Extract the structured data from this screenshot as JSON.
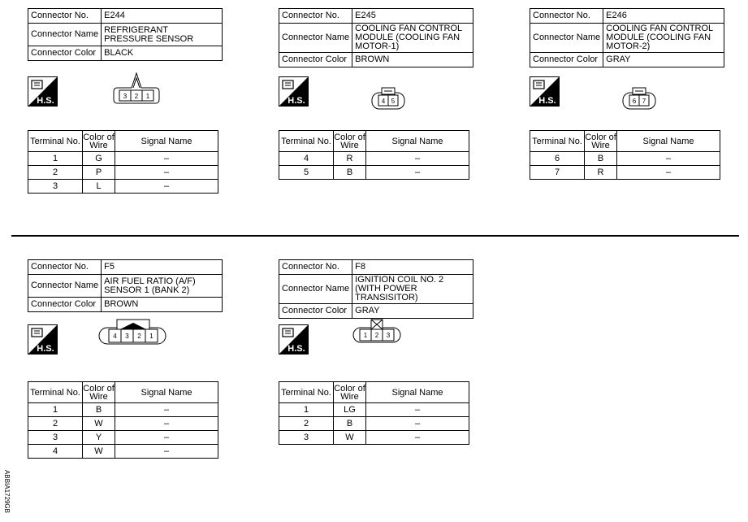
{
  "labels": {
    "connector_no": "Connector No.",
    "connector_name": "Connector Name",
    "connector_color": "Connector Color",
    "terminal_no": "Terminal No.",
    "color_of_wire": "Color of Wire",
    "signal_name": "Signal Name",
    "hs": "H.S."
  },
  "connectors": [
    {
      "no": "E244",
      "name": "REFRIGERANT PRESSURE SENSOR",
      "color": "BLACK",
      "shape": "3-pin-triangle",
      "pins": [
        "3",
        "2",
        "1"
      ],
      "terminals": [
        {
          "t": "1",
          "w": "G",
          "s": "–"
        },
        {
          "t": "2",
          "w": "P",
          "s": "–"
        },
        {
          "t": "3",
          "w": "L",
          "s": "–"
        }
      ]
    },
    {
      "no": "E245",
      "name": "COOLING FAN CONTROL MODULE (COOLING FAN MOTOR-1)",
      "color": "BROWN",
      "shape": "2-pin",
      "pins": [
        "4",
        "5"
      ],
      "terminals": [
        {
          "t": "4",
          "w": "R",
          "s": "–"
        },
        {
          "t": "5",
          "w": "B",
          "s": "–"
        }
      ]
    },
    {
      "no": "E246",
      "name": "COOLING FAN CONTROL MODULE (COOLING FAN MOTOR-2)",
      "color": "GRAY",
      "shape": "2-pin",
      "pins": [
        "6",
        "7"
      ],
      "terminals": [
        {
          "t": "6",
          "w": "B",
          "s": "–"
        },
        {
          "t": "7",
          "w": "R",
          "s": "–"
        }
      ]
    },
    {
      "no": "F5",
      "name": "AIR FUEL RATIO (A/F) SENSOR 1 (BANK 2)",
      "color": "BROWN",
      "shape": "4-pin-filled",
      "pins": [
        "4",
        "3",
        "2",
        "1"
      ],
      "terminals": [
        {
          "t": "1",
          "w": "B",
          "s": "–"
        },
        {
          "t": "2",
          "w": "W",
          "s": "–"
        },
        {
          "t": "3",
          "w": "Y",
          "s": "–"
        },
        {
          "t": "4",
          "w": "W",
          "s": "–"
        }
      ]
    },
    {
      "no": "F8",
      "name": "IGNITION COIL NO. 2 (WITH POWER TRANSISITOR)",
      "color": "GRAY",
      "shape": "3-pin-x",
      "pins": [
        "1",
        "2",
        "3"
      ],
      "terminals": [
        {
          "t": "1",
          "w": "LG",
          "s": "–"
        },
        {
          "t": "2",
          "w": "B",
          "s": "–"
        },
        {
          "t": "3",
          "w": "W",
          "s": "–"
        }
      ]
    }
  ],
  "figure_code": "ABBIA1729GB"
}
